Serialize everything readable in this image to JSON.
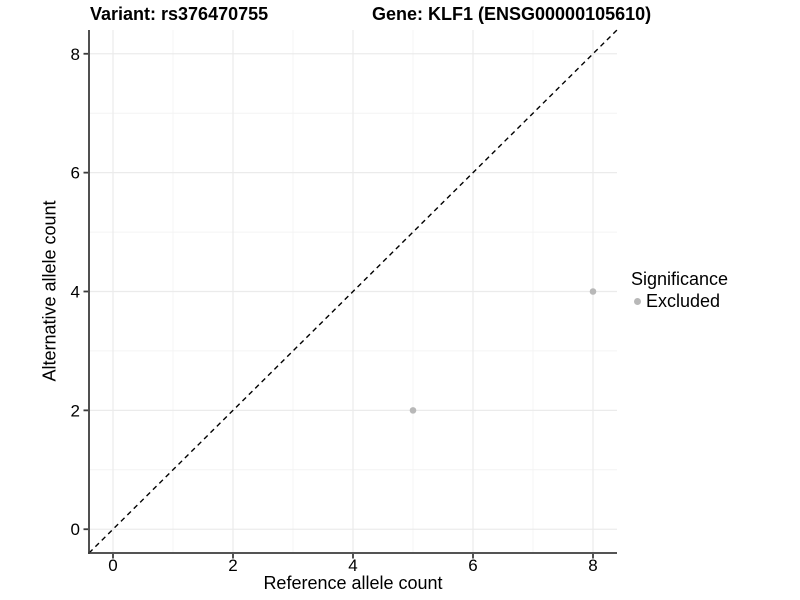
{
  "titles": {
    "variant": "Variant: rs376470755",
    "gene": "Gene: KLF1 (ENSG00000105610)"
  },
  "chart_data": {
    "type": "scatter",
    "title_left": "Variant: rs376470755",
    "title_right": "Gene: KLF1 (ENSG00000105610)",
    "xlabel": "Reference allele count",
    "ylabel": "Alternative allele count",
    "xlim": [
      -0.4,
      8.4
    ],
    "ylim": [
      -0.4,
      8.4
    ],
    "x_ticks": [
      0,
      2,
      4,
      6,
      8
    ],
    "y_ticks": [
      0,
      2,
      4,
      6,
      8
    ],
    "x_minor_gridlines": [
      1,
      3,
      5,
      7
    ],
    "y_minor_gridlines": [
      1,
      3,
      5,
      7
    ],
    "grid": true,
    "series": [
      {
        "name": "Excluded",
        "points": [
          {
            "x": 5,
            "y": 2
          },
          {
            "x": 8,
            "y": 4
          }
        ]
      }
    ],
    "reference_line": {
      "kind": "identity y=x",
      "style": "dashed",
      "x0": -0.4,
      "y0": -0.4,
      "x1": 8.4,
      "y1": 8.4
    },
    "legend": {
      "title": "Significance",
      "position": "right",
      "items": [
        {
          "label": "Excluded",
          "color": "#b8b8b8"
        }
      ]
    },
    "colors": {
      "point": "#b8b8b8",
      "grid_major": "#ebebeb",
      "grid_minor": "#f4f4f4",
      "axis_line": "#3c3c3c",
      "tick_mark": "#3c3c3c",
      "tick_label": "#000000",
      "dashed_line": "#000000",
      "background": "#ffffff"
    }
  }
}
